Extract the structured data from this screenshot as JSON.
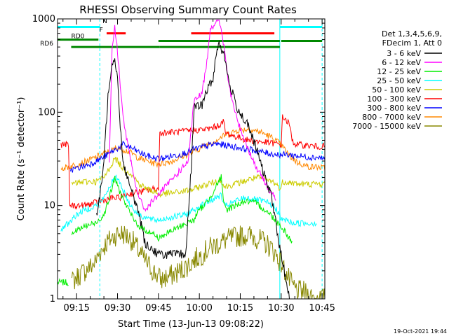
{
  "chart_data": {
    "type": "line",
    "title": "RHESSI Observing Summary Count Rates",
    "xlabel": "Start Time (13-Jun-13 09:08:22)",
    "ylabel": "Count Rate (s⁻¹ detector⁻¹)",
    "ylog": true,
    "xlim": [
      0,
      98
    ],
    "ylim": [
      1,
      1000
    ],
    "xticks": [
      {
        "t": 7,
        "label": "09:15"
      },
      {
        "t": 22,
        "label": "09:30"
      },
      {
        "t": 37,
        "label": "09:45"
      },
      {
        "t": 52,
        "label": "10:00"
      },
      {
        "t": 67,
        "label": "10:15"
      },
      {
        "t": 82,
        "label": "10:30"
      },
      {
        "t": 97,
        "label": "10:45"
      }
    ],
    "yticks": [
      {
        "v": 1,
        "label": "1"
      },
      {
        "v": 10,
        "label": "10"
      },
      {
        "v": 100,
        "label": "100"
      },
      {
        "v": 1000,
        "label": "1000"
      }
    ],
    "legend": {
      "placement": "right",
      "header": [
        "Det 1,3,4,5,6,9,",
        "FDecim 1, Att 0"
      ]
    },
    "series": [
      {
        "name": "3 - 6 keV",
        "color": "#000000",
        "x": [
          0,
          6,
          11,
          14,
          15.5,
          17,
          18.5,
          20,
          21,
          22,
          23,
          24,
          26,
          28,
          30,
          32,
          37,
          47,
          49,
          50,
          53,
          55,
          57,
          58,
          59,
          61,
          63,
          66,
          70,
          73,
          76,
          78,
          79,
          80,
          81,
          82.5,
          84,
          85,
          86,
          87,
          88,
          89,
          91,
          95,
          98
        ],
        "values": [
          null,
          null,
          null,
          7,
          12,
          30,
          150,
          360,
          360,
          250,
          70,
          30,
          18,
          12,
          8,
          4,
          3,
          3,
          25,
          110,
          120,
          180,
          220,
          400,
          560,
          420,
          200,
          110,
          70,
          40,
          20,
          14,
          10,
          7,
          4,
          2.5,
          1.5,
          1,
          null,
          null,
          null,
          null,
          null,
          null,
          null
        ]
      },
      {
        "name": "6 - 12 keV",
        "color": "#ff00ff",
        "x": [
          19,
          20,
          21,
          22,
          24,
          26,
          28,
          30,
          32,
          48,
          50,
          53,
          55,
          56,
          58,
          59,
          60,
          61,
          63,
          66,
          70,
          73,
          76,
          78,
          80
        ],
        "values": [
          30,
          500,
          800,
          450,
          90,
          40,
          20,
          12,
          9,
          30,
          130,
          160,
          400,
          800,
          900,
          950,
          800,
          500,
          180,
          80,
          40,
          25,
          18,
          14,
          12
        ]
      },
      {
        "name": "12 - 25 keV",
        "color": "#00ee00",
        "x": [
          0,
          4,
          5,
          10,
          14,
          17,
          19,
          21,
          22,
          24,
          26,
          28,
          30,
          32,
          35,
          37,
          40,
          45,
          50,
          52,
          55,
          57,
          59,
          60,
          61,
          62,
          65,
          68,
          70,
          73,
          76,
          78,
          80,
          82,
          84,
          86
        ],
        "values": [
          null,
          null,
          5,
          6,
          6.5,
          8,
          12,
          20,
          16,
          12,
          9,
          7,
          6,
          5.5,
          5,
          4.5,
          5,
          6,
          7,
          9,
          11,
          14,
          18,
          20,
          10,
          9,
          10,
          11,
          11,
          10.5,
          9,
          8,
          7,
          6,
          5,
          4
        ]
      },
      {
        "name": "25 - 50 keV",
        "color": "#00ffff",
        "x": [
          0,
          1,
          4,
          7,
          10,
          14,
          17,
          20,
          22,
          24,
          26,
          28,
          30,
          32,
          35,
          37,
          42,
          47,
          50,
          55,
          58,
          60,
          61,
          62,
          65,
          68,
          70,
          73,
          76,
          79,
          81,
          82,
          84,
          86,
          89,
          92,
          95,
          98
        ],
        "values": [
          null,
          5.5,
          6.5,
          8,
          9,
          10,
          12,
          18,
          20,
          15,
          11,
          9,
          8,
          7.5,
          7,
          7,
          7.5,
          8,
          9,
          11,
          12,
          13,
          10,
          10,
          11,
          12,
          12,
          11.5,
          11,
          10,
          8.5,
          7,
          7,
          6.5,
          6.5,
          6.5,
          6.5,
          null
        ]
      },
      {
        "name": "50 - 100 keV",
        "color": "#cccc00",
        "x": [
          4,
          5,
          10,
          14,
          17,
          19,
          21,
          22,
          24,
          27,
          30,
          33,
          36,
          37,
          40,
          45,
          50,
          55,
          58,
          60,
          61,
          62,
          65,
          68,
          70,
          73,
          76,
          79,
          81,
          82,
          82.5,
          84,
          88,
          92,
          95,
          98
        ],
        "values": [
          null,
          17,
          18,
          18,
          20,
          25,
          32,
          30,
          25,
          22,
          17,
          15,
          14,
          13,
          13.5,
          14,
          15,
          17,
          18,
          19,
          16,
          16,
          17,
          18,
          19,
          20,
          19,
          18,
          16,
          15,
          18,
          18,
          17,
          17,
          17,
          17
        ]
      },
      {
        "name": "100 - 300 keV",
        "color": "#ff0000",
        "x": [
          0,
          1,
          4,
          4.5,
          10,
          15,
          20,
          22,
          25,
          30,
          35,
          37,
          37.5,
          45,
          50,
          55,
          58,
          60,
          61,
          61.5,
          65,
          70,
          75,
          80,
          82,
          82.5,
          85,
          86,
          87,
          88,
          92,
          95,
          98
        ],
        "values": [
          null,
          45,
          45,
          10,
          10,
          11,
          12,
          12,
          13,
          14,
          15,
          15,
          60,
          62,
          64,
          66,
          70,
          75,
          80,
          60,
          55,
          50,
          48,
          46,
          45,
          90,
          75,
          50,
          46,
          45,
          44,
          43,
          43
        ]
      },
      {
        "name": "300 - 800 keV",
        "color": "#0000ff",
        "x": [
          4,
          4.5,
          7,
          12,
          17,
          20,
          22,
          24,
          26,
          28,
          30,
          33,
          36,
          38,
          42,
          46,
          50,
          54,
          58,
          62,
          66,
          70,
          74,
          78,
          82,
          85,
          88,
          92,
          95,
          98
        ],
        "values": [
          null,
          24,
          25,
          28,
          33,
          38,
          41,
          45,
          43,
          40,
          37,
          34,
          32,
          32,
          34,
          36,
          40,
          43,
          46,
          44,
          42,
          40,
          38,
          36,
          35,
          35,
          34,
          33,
          33,
          32
        ]
      },
      {
        "name": "800 - 7000 keV",
        "color": "#ff8800",
        "x": [
          0,
          1,
          4,
          8,
          12,
          16,
          20,
          22,
          24,
          26,
          28,
          30,
          33,
          36,
          38,
          42,
          46,
          50,
          54,
          58,
          62,
          66,
          70,
          74,
          78,
          82,
          85,
          88,
          92,
          95,
          98
        ],
        "values": [
          null,
          25,
          26,
          28,
          31,
          35,
          39,
          42,
          40,
          38,
          35,
          32,
          30,
          28,
          28,
          30,
          34,
          38,
          44,
          50,
          58,
          64,
          66,
          62,
          55,
          45,
          34,
          29,
          26,
          26,
          25
        ]
      },
      {
        "name": "7000 - 15000 keV",
        "color": "#888800",
        "x": [
          0,
          4,
          5,
          8,
          12,
          14,
          15,
          18,
          20,
          22,
          24,
          26,
          28,
          30,
          32,
          35,
          38,
          42,
          45,
          48,
          50,
          53,
          55,
          58,
          62,
          65,
          68,
          70,
          72,
          75,
          78,
          80,
          82,
          84,
          86,
          88,
          90,
          92,
          95,
          98
        ],
        "values": [
          null,
          null,
          1.5,
          1.8,
          2.2,
          2.5,
          3,
          4,
          4.5,
          5,
          5,
          4.6,
          4,
          3.2,
          2.6,
          2,
          1.6,
          1.8,
          2,
          2.3,
          2.6,
          3,
          3.4,
          3.8,
          4.3,
          4.6,
          4.8,
          4.8,
          4.6,
          4.2,
          3.6,
          3,
          2.4,
          1.8,
          1.4,
          1.2,
          1.2,
          1.1,
          1,
          1
        ]
      },
      {
        "name": "",
        "color": "#00ee00",
        "x": [
          0,
          4,
          4.5
        ],
        "values": [
          1.5,
          1.5,
          null
        ]
      }
    ],
    "flags": [
      {
        "label": "",
        "color": "#00ffff",
        "segments": [
          [
            0,
            15.5
          ],
          [
            81.5,
            97
          ]
        ],
        "level": 820
      },
      {
        "label": "N",
        "color": "#00ffff",
        "segments": [],
        "level": 870
      },
      {
        "label": "F",
        "color": "#ff0000",
        "segments": [
          [
            18,
            25
          ],
          [
            49,
            79.5
          ]
        ],
        "level": 700
      },
      {
        "label": "RD0",
        "color": "#008800",
        "segments": [
          [
            0,
            15
          ]
        ],
        "level": 600
      },
      {
        "label": "",
        "color": "#008800",
        "segments": [
          [
            37,
            81.5
          ],
          [
            82,
            97
          ]
        ],
        "level": 580
      },
      {
        "label": "RD6",
        "color": "#008800",
        "segments": [
          [
            5,
            37.5
          ],
          [
            37.5,
            81.5
          ]
        ],
        "level": 500
      }
    ],
    "vlines": [
      {
        "t": 0,
        "style": "solid"
      },
      {
        "t": 15.5,
        "style": "dashed"
      },
      {
        "t": 81.5,
        "style": "solid"
      },
      {
        "t": 97,
        "style": "dashed"
      }
    ]
  },
  "footer": {
    "timestamp": "19-Oct-2021 19:44"
  }
}
